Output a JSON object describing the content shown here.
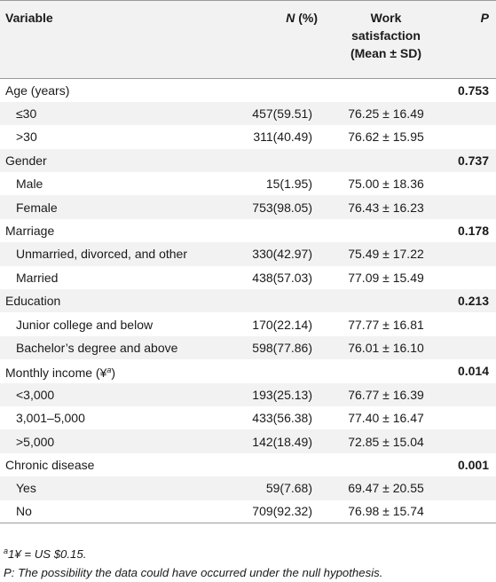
{
  "table": {
    "headers": {
      "variable": "Variable",
      "n": "N",
      "n_suffix": " (%)",
      "ws_line1": "Work",
      "ws_line2": "satisfaction",
      "ws_line3": "(Mean ± SD)",
      "p": "P"
    },
    "rows": [
      {
        "label": "Age (years)",
        "n": "",
        "ws": "",
        "p": "0.753",
        "kind": "group"
      },
      {
        "label": "≤30",
        "n": "457(59.51)",
        "ws": "76.25 ± 16.49",
        "p": "",
        "kind": "sub"
      },
      {
        "label": ">30",
        "n": "311(40.49)",
        "ws": "76.62 ± 15.95",
        "p": "",
        "kind": "sub"
      },
      {
        "label": "Gender",
        "n": "",
        "ws": "",
        "p": "0.737",
        "kind": "group"
      },
      {
        "label": "Male",
        "n": "15(1.95)",
        "ws": "75.00 ± 18.36",
        "p": "",
        "kind": "sub"
      },
      {
        "label": "Female",
        "n": "753(98.05)",
        "ws": "76.43 ± 16.23",
        "p": "",
        "kind": "sub"
      },
      {
        "label": "Marriage",
        "n": "",
        "ws": "",
        "p": "0.178",
        "kind": "group"
      },
      {
        "label": "Unmarried, divorced, and other",
        "n": "330(42.97)",
        "ws": "75.49 ± 17.22",
        "p": "",
        "kind": "sub"
      },
      {
        "label": "Married",
        "n": "438(57.03)",
        "ws": "77.09 ± 15.49",
        "p": "",
        "kind": "sub"
      },
      {
        "label": "Education",
        "n": "",
        "ws": "",
        "p": "0.213",
        "kind": "group"
      },
      {
        "label": "Junior college and below",
        "n": "170(22.14)",
        "ws": "77.77 ± 16.81",
        "p": "",
        "kind": "sub"
      },
      {
        "label": "Bachelor’s degree and above",
        "n": "598(77.86)",
        "ws": "76.01 ± 16.10",
        "p": "",
        "kind": "sub"
      },
      {
        "label": "Monthly income (¥",
        "label_sup": "a",
        "label_tail": ")",
        "n": "",
        "ws": "",
        "p": "0.014",
        "kind": "group"
      },
      {
        "label": "<3,000",
        "n": "193(25.13)",
        "ws": "76.77 ± 16.39",
        "p": "",
        "kind": "sub"
      },
      {
        "label": "3,001–5,000",
        "n": "433(56.38)",
        "ws": "77.40 ± 16.47",
        "p": "",
        "kind": "sub"
      },
      {
        "label": ">5,000",
        "n": "142(18.49)",
        "ws": "72.85 ± 15.04",
        "p": "",
        "kind": "sub"
      },
      {
        "label": "Chronic disease",
        "n": "",
        "ws": "",
        "p": "0.001",
        "kind": "group"
      },
      {
        "label": "Yes",
        "n": "59(7.68)",
        "ws": "69.47 ± 20.55",
        "p": "",
        "kind": "sub"
      },
      {
        "label": "No",
        "n": "709(92.32)",
        "ws": "76.98 ± 15.74",
        "p": "",
        "kind": "sub"
      }
    ]
  },
  "footnotes": {
    "a_mark": "a",
    "a_text": "1¥ = US $0.15.",
    "p_text": "P: The possibility the data could have occurred under the null hypothesis."
  }
}
